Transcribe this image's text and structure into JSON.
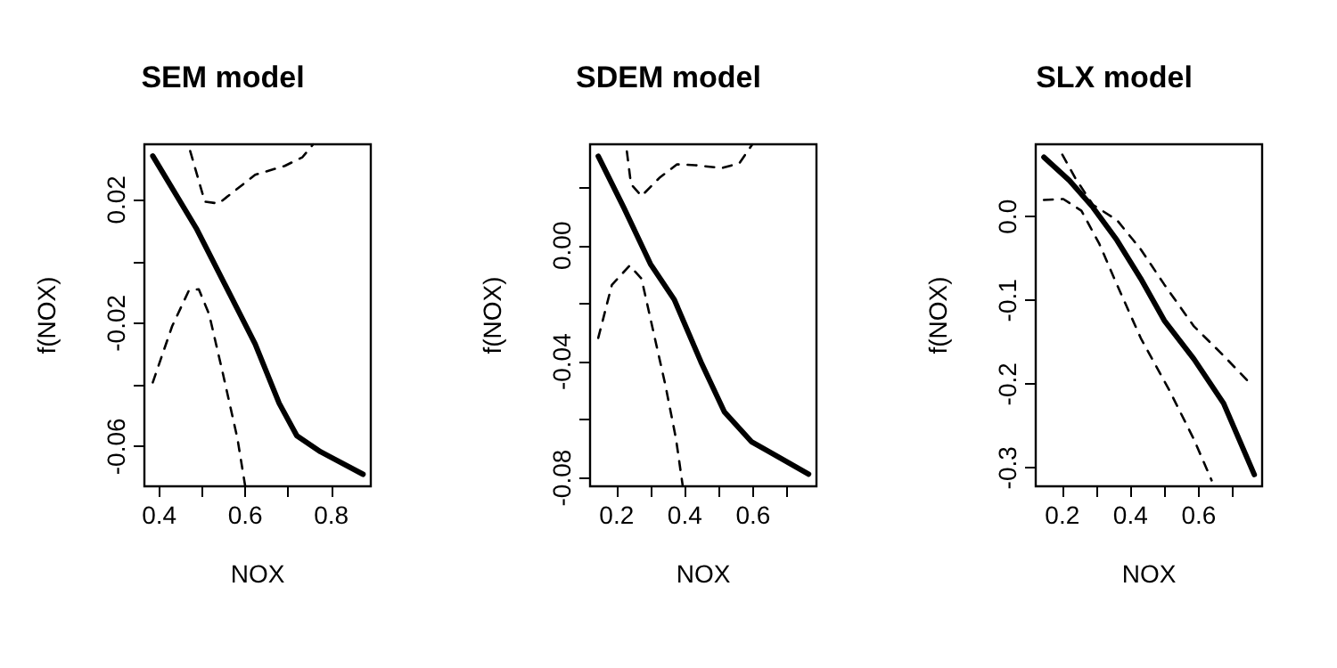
{
  "chart_data": [
    {
      "type": "line",
      "title": "SEM model",
      "xlabel": "NOX",
      "ylabel": "f(NOX)",
      "xlim": [
        0.3655,
        0.892
      ],
      "ylim": [
        -0.0729,
        0.038
      ],
      "xticks": [
        0.4,
        {
          "value": 0.5,
          "label": null
        },
        0.6,
        {
          "value": 0.7,
          "label": null
        },
        0.8
      ],
      "yticks": [
        {
          "value": -0.06,
          "label": "-0.06"
        },
        {
          "value": -0.04,
          "label": null
        },
        {
          "value": -0.02,
          "label": "-0.02"
        },
        {
          "value": 0,
          "label": null
        },
        0.02
      ],
      "series": [
        {
          "color": "#000000",
          "line_style": "solid",
          "x": [
            0.385,
            0.486,
            0.623,
            0.679,
            0.72,
            0.775,
            0.874
          ],
          "values": [
            0.0342,
            0.0108,
            -0.0267,
            -0.046,
            -0.0565,
            -0.0617,
            -0.069
          ]
        },
        {
          "color": "#000000",
          "line_style": "dashed",
          "x": [
            0.472,
            0.506,
            0.538,
            0.623,
            0.692,
            0.733,
            0.758
          ],
          "values": [
            0.0358,
            0.0194,
            0.0188,
            0.0281,
            0.031,
            0.0338,
            0.038
          ]
        },
        {
          "color": "#000000",
          "line_style": "dashed",
          "x": [
            0.385,
            0.43,
            0.469,
            0.492,
            0.516,
            0.548,
            0.582,
            0.6
          ],
          "values": [
            -0.0392,
            -0.021,
            -0.0094,
            -0.009,
            -0.0171,
            -0.0363,
            -0.0575,
            -0.0729
          ]
        }
      ]
    },
    {
      "type": "line",
      "title": "SDEM model",
      "xlabel": "NOX",
      "ylabel": "f(NOX)",
      "xlim": [
        0.122,
        0.786
      ],
      "ylim": [
        -0.0829,
        0.0349
      ],
      "xticks": [
        0.2,
        {
          "value": 0.3,
          "label": null
        },
        0.4,
        {
          "value": 0.5,
          "label": null
        },
        0.6,
        {
          "value": 0.7,
          "label": null
        }
      ],
      "yticks": [
        {
          "value": -0.08,
          "label": "-0.08"
        },
        {
          "value": -0.06,
          "label": null
        },
        {
          "value": -0.04,
          "label": "-0.04"
        },
        {
          "value": -0.02,
          "label": null
        },
        {
          "value": 0,
          "label": "0.00"
        },
        {
          "value": 0.02,
          "label": null
        }
      ],
      "series": [
        {
          "color": "#000000",
          "line_style": "solid",
          "x": [
            0.146,
            0.221,
            0.299,
            0.369,
            0.447,
            0.516,
            0.595,
            0.763
          ],
          "values": [
            0.0308,
            0.0131,
            -0.0063,
            -0.0186,
            -0.04,
            -0.0573,
            -0.0675,
            -0.0787
          ]
        },
        {
          "color": "#000000",
          "line_style": "dashed",
          "x": [
            0.23,
            0.242,
            0.273,
            0.325,
            0.377,
            0.43,
            0.508,
            0.56,
            0.598
          ],
          "values": [
            0.0324,
            0.0212,
            0.0171,
            0.0233,
            0.028,
            0.0277,
            0.0267,
            0.0284,
            0.0349
          ]
        },
        {
          "color": "#000000",
          "line_style": "dashed",
          "x": [
            0.146,
            0.186,
            0.238,
            0.273,
            0.308,
            0.343,
            0.374,
            0.394
          ],
          "values": [
            -0.0318,
            -0.0135,
            -0.0069,
            -0.0114,
            -0.0298,
            -0.0481,
            -0.0665,
            -0.0829
          ]
        }
      ]
    },
    {
      "type": "line",
      "title": "SLX model",
      "xlabel": "NOX",
      "ylabel": "f(NOX)",
      "xlim": [
        0.122,
        0.786
      ],
      "ylim": [
        -0.322,
        0.0864
      ],
      "xticks": [
        0.2,
        {
          "value": 0.3,
          "label": null
        },
        0.4,
        {
          "value": 0.5,
          "label": null
        },
        0.6,
        {
          "value": 0.7,
          "label": null
        }
      ],
      "yticks": [
        {
          "value": -0.3,
          "label": "-0.3"
        },
        {
          "value": -0.2,
          "label": "-0.2"
        },
        {
          "value": -0.1,
          "label": "-0.1"
        },
        {
          "value": 0,
          "label": "0.0"
        }
      ],
      "series": [
        {
          "color": "#000000",
          "line_style": "solid",
          "x": [
            0.146,
            0.221,
            0.29,
            0.36,
            0.43,
            0.499,
            0.586,
            0.673,
            0.763
          ],
          "values": [
            0.071,
            0.043,
            0.011,
            -0.028,
            -0.074,
            -0.124,
            -0.17,
            -0.223,
            -0.308
          ]
        },
        {
          "color": "#000000",
          "line_style": "dashed",
          "x": [
            0.2,
            0.238,
            0.29,
            0.36,
            0.43,
            0.499,
            0.586,
            0.673,
            0.748
          ],
          "values": [
            0.074,
            0.046,
            0.014,
            -0.004,
            -0.039,
            -0.081,
            -0.131,
            -0.166,
            -0.198
          ]
        },
        {
          "color": "#000000",
          "line_style": "dashed",
          "x": [
            0.146,
            0.203,
            0.256,
            0.308,
            0.36,
            0.43,
            0.516,
            0.586,
            0.638
          ],
          "values": [
            0.02,
            0.021,
            0.007,
            -0.032,
            -0.081,
            -0.145,
            -0.209,
            -0.266,
            -0.315
          ]
        }
      ]
    }
  ]
}
